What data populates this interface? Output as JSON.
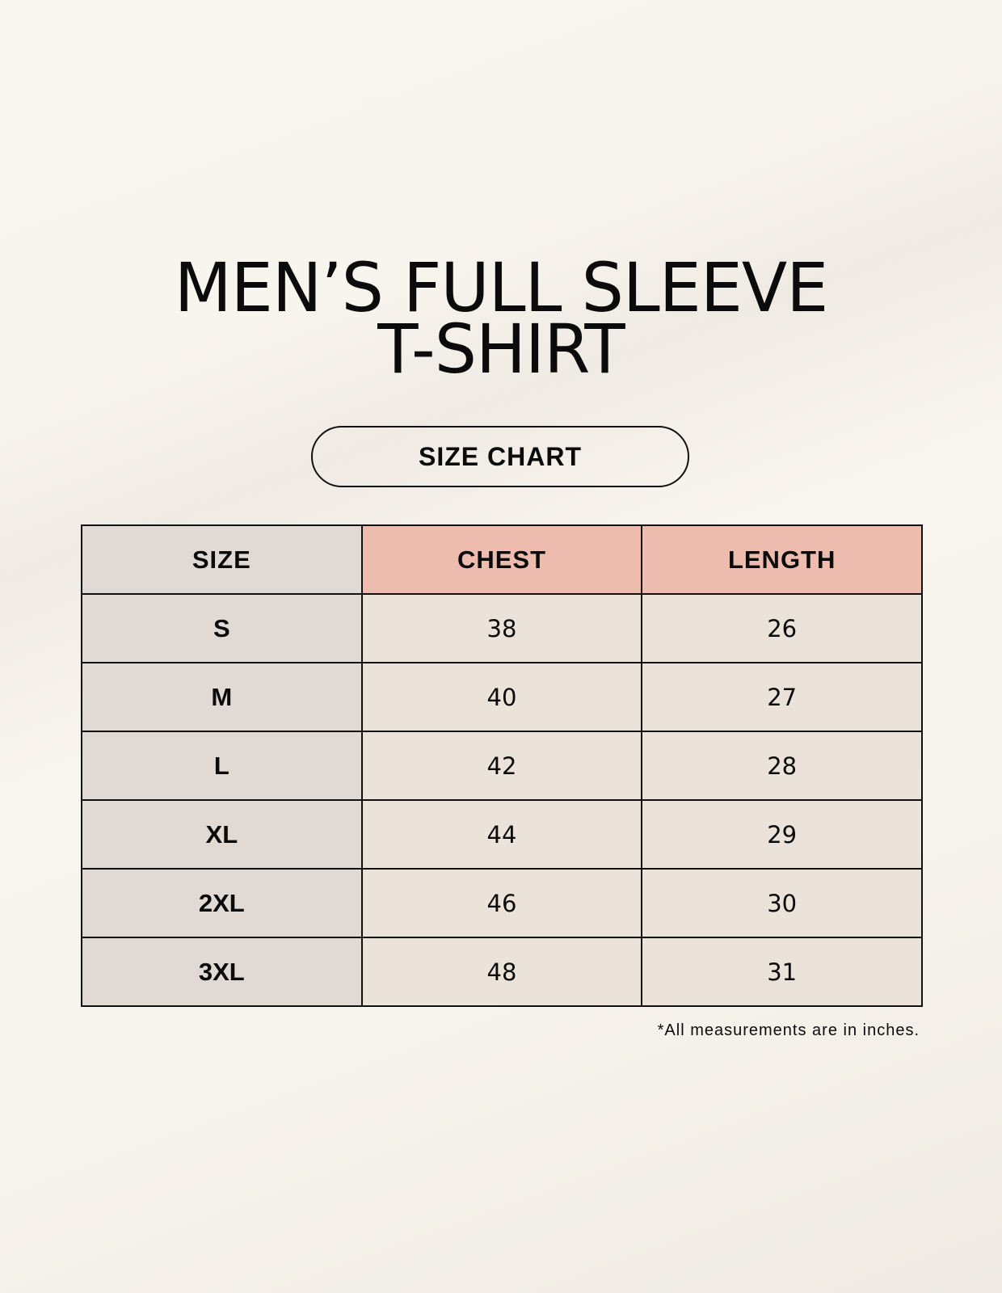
{
  "title": {
    "line1": "MEN’S FULL SLEEVE",
    "line2": "T-SHIRT"
  },
  "badge": "SIZE CHART",
  "colors": {
    "size_column": "#e0d9d4",
    "header_accent": "#edbcae",
    "cell": "#ebe3d9"
  },
  "table": {
    "headers": [
      "SIZE",
      "CHEST",
      "LENGTH"
    ],
    "rows": [
      [
        "S",
        "38",
        "26"
      ],
      [
        "M",
        "40",
        "27"
      ],
      [
        "L",
        "42",
        "28"
      ],
      [
        "XL",
        "44",
        "29"
      ],
      [
        "2XL",
        "46",
        "30"
      ],
      [
        "3XL",
        "48",
        "31"
      ]
    ]
  },
  "note": "*All measurements are in inches."
}
